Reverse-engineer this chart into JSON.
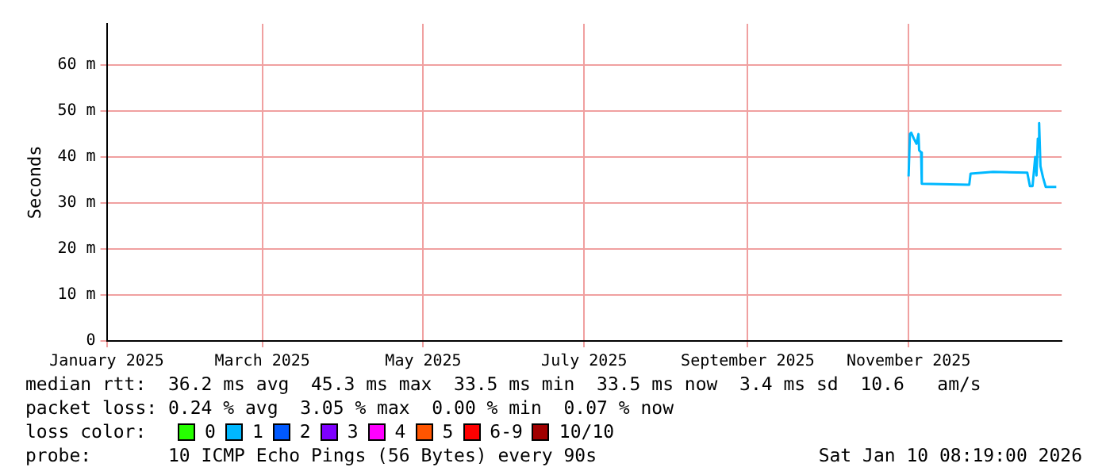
{
  "chart_data": {
    "type": "line",
    "ylabel": "Seconds",
    "legend_title": "loss color:",
    "legend": "bottom",
    "grid": true,
    "marker": "none",
    "line_style": "solid",
    "xlim": [
      "2025-01-01",
      "2025-12-29"
    ],
    "xticks": [
      {
        "value": "2025-01-01",
        "label": "January 2025"
      },
      {
        "value": "2025-03-01",
        "label": "March 2025"
      },
      {
        "value": "2025-05-01",
        "label": "May 2025"
      },
      {
        "value": "2025-07-01",
        "label": "July 2025"
      },
      {
        "value": "2025-09-01",
        "label": "September 2025"
      },
      {
        "value": "2025-11-01",
        "label": "November 2025"
      }
    ],
    "ylim": [
      0,
      69
    ],
    "yticks": [
      0,
      {
        "value": 10,
        "label": "10 m"
      },
      {
        "value": 20,
        "label": "20 m"
      },
      {
        "value": 30,
        "label": "30 m"
      },
      {
        "value": 40,
        "label": "40 m"
      },
      {
        "value": 50,
        "label": "50 m"
      },
      {
        "value": 60,
        "label": "60 m"
      }
    ],
    "series": [
      {
        "name": "0",
        "color": "#26ff00"
      },
      {
        "name": "1",
        "color": "#00b8ff",
        "x": [
          "2025-11-01",
          "2025-11-01T12:00",
          "2025-11-02",
          "2025-11-03",
          "2025-11-04",
          "2025-11-04T18:00",
          "2025-11-05",
          "2025-11-05T18:00",
          "2025-11-06",
          "2025-11-24",
          "2025-11-24T12:00",
          "2025-12-03",
          "2025-12-16",
          "2025-12-17",
          "2025-12-18",
          "2025-12-19",
          "2025-12-19T12:00",
          "2025-12-20",
          "2025-12-20T12:00",
          "2025-12-21",
          "2025-12-22",
          "2025-12-23",
          "2025-12-27"
        ],
        "values": [
          35.8,
          45.0,
          45.3,
          44.0,
          42.9,
          45.0,
          41.5,
          41.0,
          34.2,
          34.0,
          36.4,
          36.8,
          36.6,
          33.7,
          33.7,
          40,
          36,
          44,
          47.4,
          38,
          35.5,
          33.5,
          33.5
        ]
      },
      {
        "name": "2",
        "color": "#0059ff"
      },
      {
        "name": "3",
        "color": "#7e00ff"
      },
      {
        "name": "4",
        "color": "#ff00ff"
      },
      {
        "name": "5",
        "color": "#ff5500"
      },
      {
        "name": "6-9",
        "color": "#ff0000"
      },
      {
        "name": "10/10",
        "color": "#a10000"
      }
    ],
    "annotations": [
      "median rtt:  36.2 ms avg  45.3 ms max  33.5 ms min  33.5 ms now  3.4 ms sd  10.6   am/s",
      "packet loss: 0.24 % avg  3.05 % max  0.00 % min  0.07 % now",
      "probe:       10 ICMP Echo Pings (56 Bytes) every 90s",
      "Sat Jan 10 08:19:00 2026"
    ]
  }
}
